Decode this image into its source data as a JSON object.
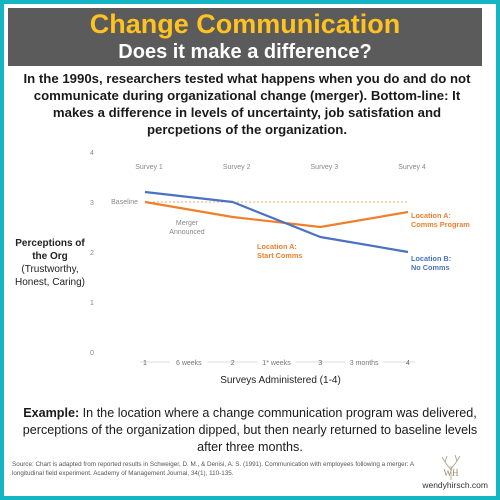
{
  "header": {
    "title": "Change Communication",
    "subtitle": "Does it make a difference?"
  },
  "intro": "In the 1990s, researchers tested what happens when you do and do not communicate during organizational change (merger). Bottom-line: It makes a difference in levels of uncertainty, job satisfation and percpetions of the organization.",
  "chart_data": {
    "type": "line",
    "xlabel": "Surveys Administered (1-4)",
    "ylabel": "Perceptions of the Org",
    "ylabel_sub": "(Trustworthy, Honest, Caring)",
    "x": [
      1,
      2,
      3,
      4
    ],
    "x_ticks": [
      "1",
      "2",
      "3",
      "4"
    ],
    "interval_labels": [
      "6 weeks",
      "1* weeks",
      "3 months"
    ],
    "y_ticks": [
      "0",
      "1",
      "2",
      "3",
      "4"
    ],
    "ylim": [
      0,
      4
    ],
    "xlim": [
      1,
      4
    ],
    "grid": false,
    "survey_labels": [
      "Survey 1",
      "Survey 2",
      "Survey 3",
      "Survey 4"
    ],
    "baseline": {
      "label": "Baseline",
      "value": 3.0,
      "color": "#f28c3c"
    },
    "series": [
      {
        "name": "Location A: Comms Program",
        "color": "#f07f2c",
        "values": [
          3.0,
          2.7,
          2.5,
          2.8
        ]
      },
      {
        "name": "Location B: No Comms",
        "color": "#4a72c4",
        "values": [
          3.2,
          3.0,
          2.3,
          2.0
        ]
      }
    ],
    "annotations": [
      {
        "lines": [
          "Merger",
          "Announced"
        ],
        "color": "#888888"
      },
      {
        "lines": [
          "Location A:",
          "Start Comms"
        ],
        "color": "#f07f2c"
      },
      {
        "lines": [
          "Location A:",
          "Comms Program"
        ],
        "color": "#f07f2c"
      },
      {
        "lines": [
          "Location B:",
          "No Comms"
        ],
        "color": "#4a72c4"
      }
    ]
  },
  "example": {
    "label": "Example:",
    "text": " In the location where a change communication program was delivered, perceptions of the organization dipped, but then nearly returned to baseline levels after three months."
  },
  "source": "Source: Chart is adapted from reported results in Schweiger, D. M., & Denisi, A. S. (1991). Communication with employees following a merger: A longitudinal field experiment. Academy of Management Journal, 34(1), 110-135.",
  "logo_text": "WH",
  "site": "wendyhirsch.com"
}
